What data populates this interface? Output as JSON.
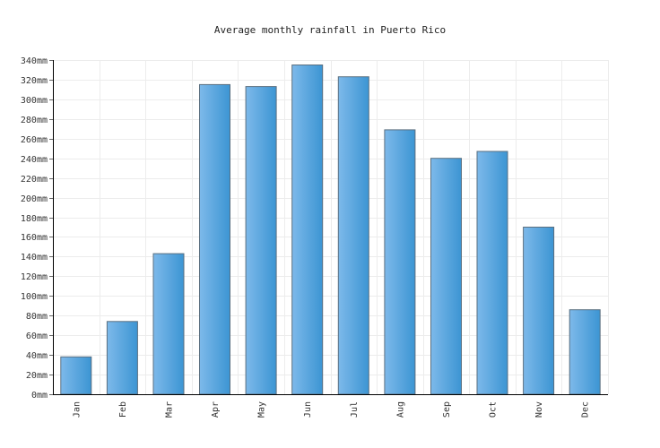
{
  "chart_data": {
    "type": "bar",
    "title": "Average monthly rainfall in Puerto Rico",
    "xlabel": "",
    "ylabel": "",
    "categories": [
      "Jan",
      "Feb",
      "Mar",
      "Apr",
      "May",
      "Jun",
      "Jul",
      "Aug",
      "Sep",
      "Oct",
      "Nov",
      "Dec"
    ],
    "values": [
      38,
      74,
      143,
      315,
      313,
      335,
      323,
      269,
      240,
      247,
      170,
      86
    ],
    "unit_suffix": "mm",
    "ylim": [
      0,
      340
    ],
    "ytick_step": 20,
    "yticks": [
      "0mm",
      "20mm",
      "40mm",
      "60mm",
      "80mm",
      "100mm",
      "120mm",
      "140mm",
      "160mm",
      "180mm",
      "200mm",
      "220mm",
      "240mm",
      "260mm",
      "280mm",
      "300mm",
      "320mm",
      "340mm"
    ],
    "grid": true,
    "legend": "none",
    "colors": {
      "bar_light": "#7db9ea",
      "bar_dark": "#3c95d3",
      "bar_stroke": "#5a6f80",
      "grid": "#ececec",
      "axis": "#000000"
    }
  }
}
